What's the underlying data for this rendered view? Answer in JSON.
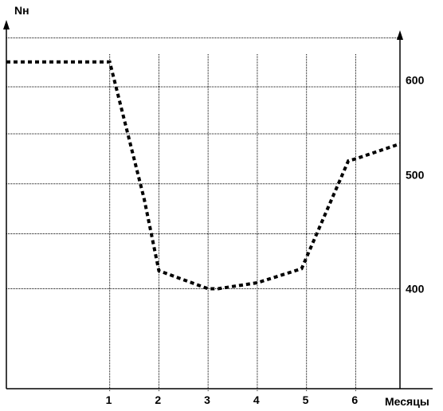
{
  "chart_data": {
    "type": "line",
    "ylabel": "Nн",
    "xlabel": "Месяцы",
    "x_ticks": [
      "1",
      "2",
      "3",
      "4",
      "5",
      "6"
    ],
    "y_ticks": [
      "400",
      "500",
      "600"
    ],
    "ylim": [
      300,
      665
    ],
    "grid": true,
    "series": [
      {
        "x": [
          -1.1,
          1.0,
          1.7,
          2.0,
          3.0,
          3.2,
          4.0,
          4.9,
          5.85,
          6.0,
          6.9
        ],
        "y": [
          627,
          627,
          490,
          418,
          400,
          400,
          406,
          420,
          528,
          530,
          545
        ]
      }
    ]
  }
}
